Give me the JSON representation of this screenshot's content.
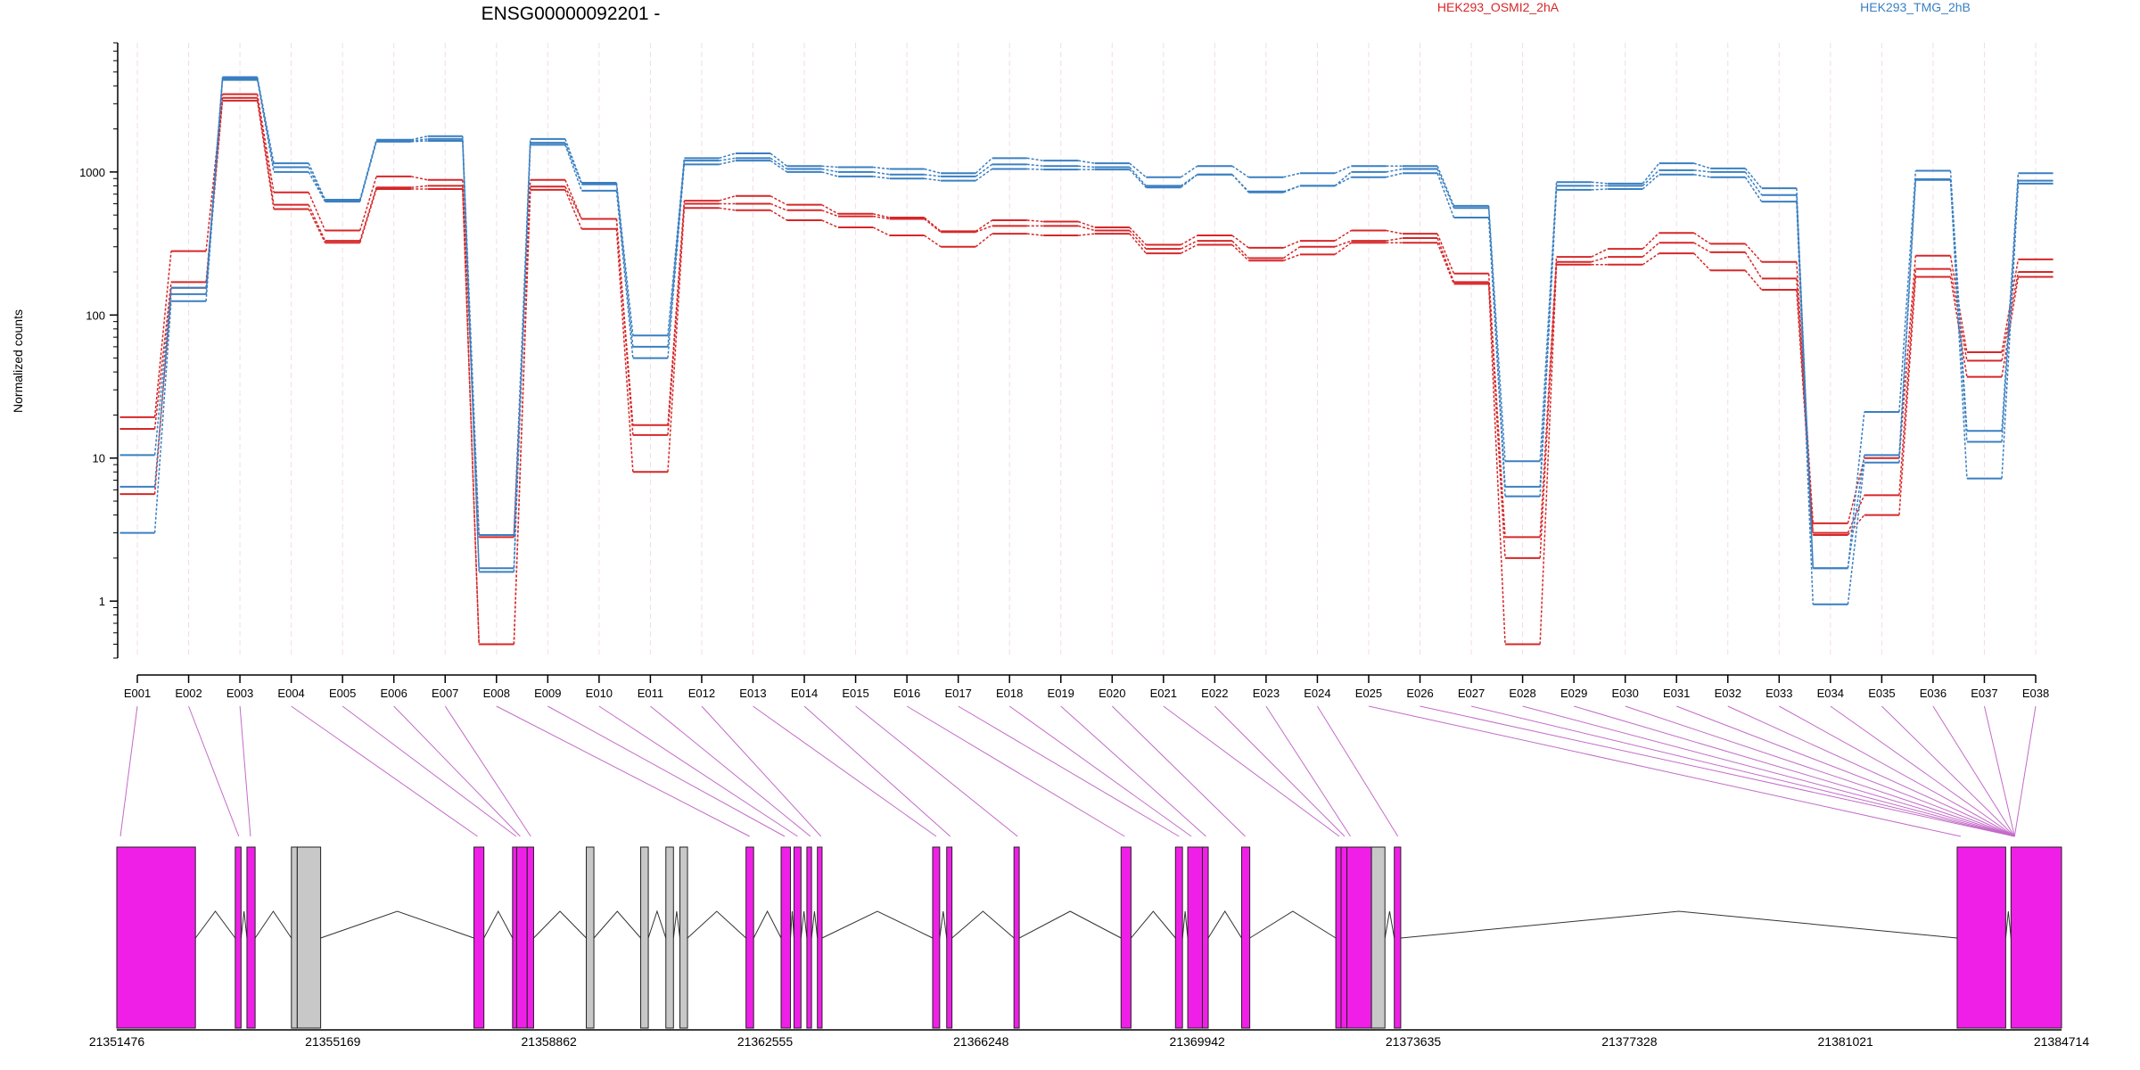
{
  "chart_data": {
    "type": "line",
    "title": "ENSG00000092201 -",
    "xlabel": "",
    "ylabel": "Normalized counts",
    "y_scale": "log",
    "ylim": [
      0.4,
      8000
    ],
    "y_ticks": [
      1,
      10,
      100,
      1000
    ],
    "y_tick_labels": [
      "1",
      "10",
      "100",
      "1000"
    ],
    "legend": [
      {
        "label": "HEK293_OSMI2_2hA",
        "color": "#d62728"
      },
      {
        "label": "HEK293_TMG_2hB",
        "color": "#3a7fc1"
      }
    ],
    "categories": [
      "E001",
      "E002",
      "E003",
      "E004",
      "E005",
      "E006",
      "E007",
      "E008",
      "E009",
      "E010",
      "E011",
      "E012",
      "E013",
      "E014",
      "E015",
      "E016",
      "E017",
      "E018",
      "E019",
      "E020",
      "E021",
      "E022",
      "E023",
      "E024",
      "E025",
      "E026",
      "E027",
      "E028",
      "E029",
      "E030",
      "E031",
      "E032",
      "E033",
      "E034",
      "E035",
      "E036",
      "E037",
      "E038"
    ],
    "series": [
      {
        "name": "HEK293_OSMI2_2hA",
        "color": "#d62728",
        "values": [
          19.3,
          280,
          3500,
          720,
          390,
          930,
          880,
          2.8,
          880,
          470,
          17,
          630,
          680,
          590,
          510,
          480,
          385,
          460,
          450,
          410,
          310,
          360,
          295,
          330,
          390,
          370,
          195,
          2.8,
          255,
          290,
          375,
          315,
          235,
          3.5,
          10,
          260,
          55,
          245
        ]
      },
      {
        "name": "",
        "color": "#d62728",
        "values": [
          16,
          170,
          3300,
          590,
          330,
          780,
          800,
          0.5,
          790,
          470,
          14.5,
          600,
          600,
          540,
          490,
          470,
          380,
          420,
          420,
          390,
          290,
          330,
          250,
          300,
          330,
          345,
          170,
          2.0,
          235,
          255,
          320,
          275,
          180,
          3.0,
          5.5,
          210,
          48,
          200
        ]
      },
      {
        "name": "",
        "color": "#d62728",
        "values": [
          5.6,
          155,
          3150,
          550,
          320,
          760,
          760,
          0.5,
          750,
          400,
          8,
          560,
          540,
          460,
          410,
          360,
          300,
          370,
          360,
          370,
          270,
          310,
          240,
          265,
          320,
          320,
          165,
          0.5,
          225,
          225,
          270,
          205,
          150,
          2.9,
          4.0,
          185,
          37,
          185
        ]
      },
      {
        "name": "HEK293_TMG_2hB",
        "color": "#3a7fc1",
        "values": [
          10.5,
          155,
          4600,
          1150,
          640,
          1680,
          1780,
          2.9,
          1700,
          840,
          72,
          1250,
          1350,
          1100,
          1080,
          1050,
          980,
          1250,
          1200,
          1150,
          920,
          1100,
          920,
          980,
          1100,
          1100,
          580,
          9.5,
          850,
          830,
          1150,
          1060,
          770,
          1.7,
          21,
          1020,
          15.5,
          980
        ]
      },
      {
        "name": "",
        "color": "#3a7fc1",
        "values": [
          6.3,
          140,
          4500,
          1080,
          630,
          1650,
          1700,
          1.7,
          1600,
          820,
          60,
          1200,
          1250,
          1050,
          1000,
          960,
          930,
          1130,
          1100,
          1080,
          800,
          960,
          730,
          800,
          1000,
          1050,
          560,
          6.3,
          800,
          800,
          1030,
          1000,
          690,
          1.7,
          10.5,
          890,
          13,
          870
        ]
      },
      {
        "name": "",
        "color": "#3a7fc1",
        "values": [
          3.0,
          125,
          4400,
          1000,
          620,
          1630,
          1650,
          1.6,
          1550,
          740,
          50,
          1130,
          1200,
          1000,
          930,
          900,
          870,
          1050,
          1040,
          1040,
          780,
          960,
          720,
          800,
          920,
          980,
          480,
          5.4,
          750,
          760,
          960,
          920,
          620,
          0.95,
          9.3,
          880,
          7.2,
          830
        ]
      }
    ],
    "gene_model": {
      "coordinate_ticks": [
        "21351476",
        "21355169",
        "21358862",
        "21362555",
        "21366248",
        "21369942",
        "21373635",
        "21377328",
        "21381021",
        "21384714"
      ],
      "coordinate_values": [
        21351476,
        21355169,
        21358862,
        21362555,
        21366248,
        21369942,
        21373635,
        21377328,
        21381021,
        21384714
      ],
      "highlight_color": "#f01fe8",
      "other_color": "#c8c8c8",
      "exon_blocks": [
        {
          "start": 21351476,
          "end": 21352820,
          "tested": true
        },
        {
          "start": 21353500,
          "end": 21353600,
          "tested": true
        },
        {
          "start": 21353700,
          "end": 21353840,
          "tested": true
        },
        {
          "start": 21354460,
          "end": 21354560,
          "tested": false
        },
        {
          "start": 21354560,
          "end": 21354960,
          "tested": false
        },
        {
          "start": 21357580,
          "end": 21357750,
          "tested": true
        },
        {
          "start": 21358240,
          "end": 21358310,
          "tested": true
        },
        {
          "start": 21358310,
          "end": 21358490,
          "tested": true
        },
        {
          "start": 21358490,
          "end": 21358600,
          "tested": true
        },
        {
          "start": 21359500,
          "end": 21359630,
          "tested": false
        },
        {
          "start": 21360430,
          "end": 21360560,
          "tested": false
        },
        {
          "start": 21360860,
          "end": 21360990,
          "tested": false
        },
        {
          "start": 21361100,
          "end": 21361230,
          "tested": false
        },
        {
          "start": 21362230,
          "end": 21362360,
          "tested": true
        },
        {
          "start": 21362830,
          "end": 21362990,
          "tested": true
        },
        {
          "start": 21363050,
          "end": 21363170,
          "tested": true
        },
        {
          "start": 21363270,
          "end": 21363350,
          "tested": true
        },
        {
          "start": 21363450,
          "end": 21363530,
          "tested": true
        },
        {
          "start": 21365420,
          "end": 21365540,
          "tested": true
        },
        {
          "start": 21365660,
          "end": 21365750,
          "tested": true
        },
        {
          "start": 21366810,
          "end": 21366900,
          "tested": true
        },
        {
          "start": 21368640,
          "end": 21368810,
          "tested": true
        },
        {
          "start": 21369570,
          "end": 21369690,
          "tested": true
        },
        {
          "start": 21369780,
          "end": 21370030,
          "tested": true
        },
        {
          "start": 21370030,
          "end": 21370130,
          "tested": true
        },
        {
          "start": 21370700,
          "end": 21370840,
          "tested": true
        },
        {
          "start": 21372310,
          "end": 21372400,
          "tested": true
        },
        {
          "start": 21372400,
          "end": 21372500,
          "tested": true
        },
        {
          "start": 21372500,
          "end": 21372920,
          "tested": true
        },
        {
          "start": 21372920,
          "end": 21373150,
          "tested": false
        },
        {
          "start": 21373310,
          "end": 21373420,
          "tested": true
        },
        {
          "start": 21382930,
          "end": 21383760,
          "tested": true
        },
        {
          "start": 21383850,
          "end": 21384714,
          "tested": true
        }
      ]
    }
  }
}
